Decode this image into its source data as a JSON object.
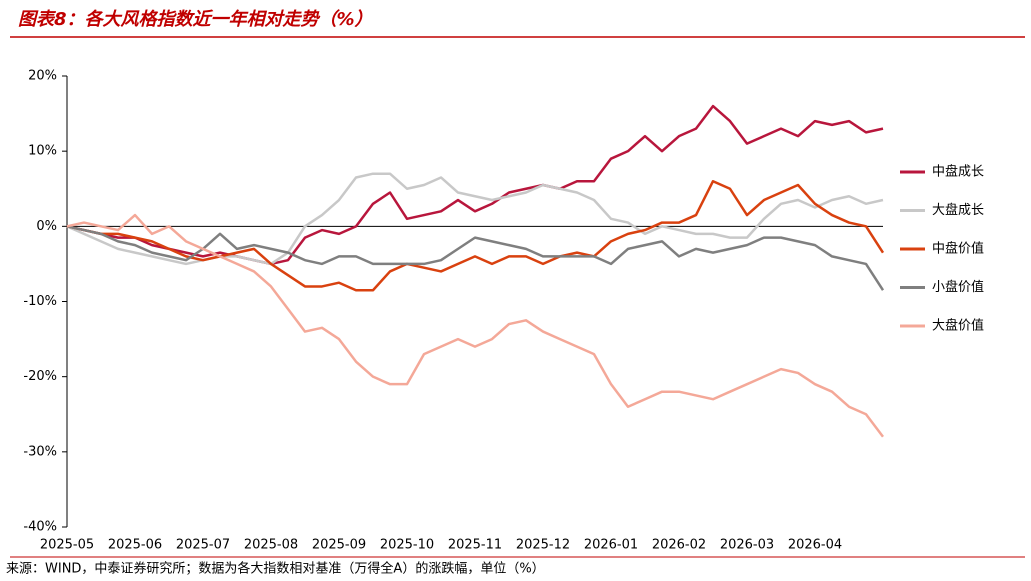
{
  "chart_data": {
    "type": "line",
    "title": "图表8：各大风格指数近一年相对走势（%）",
    "categories": [
      "2025-05",
      null,
      null,
      null,
      "2025-06",
      null,
      null,
      null,
      "2025-07",
      null,
      null,
      null,
      "2025-08",
      null,
      null,
      null,
      "2025-09",
      null,
      null,
      null,
      "2025-10",
      null,
      null,
      null,
      "2025-11",
      null,
      null,
      null,
      "2025-12",
      null,
      null,
      null,
      "2026-01",
      null,
      null,
      null,
      "2026-02",
      null,
      null,
      null,
      "2026-03",
      null,
      null,
      null,
      "2026-04",
      null,
      null,
      null,
      null
    ],
    "ylim": [
      -40,
      20
    ],
    "yticks": [
      {
        "value": -40,
        "label": "-40%"
      },
      {
        "value": -30,
        "label": "-30%"
      },
      {
        "value": -20,
        "label": "-20%"
      },
      {
        "value": -10,
        "label": "-10%"
      },
      {
        "value": 0,
        "label": "0%"
      },
      {
        "value": 10,
        "label": "10%"
      },
      {
        "value": 20,
        "label": "20%"
      }
    ],
    "legend": "right",
    "series": [
      {
        "name": "中盘成长",
        "color": "#b8163c",
        "values": [
          0,
          -0.5,
          -1,
          -1.5,
          -1.5,
          -2.5,
          -3,
          -3.5,
          -4,
          -3.5,
          -4,
          -4.5,
          -5,
          -4.5,
          -1.5,
          -0.5,
          -1,
          0,
          3,
          4.5,
          1,
          1.5,
          2,
          3.5,
          2,
          3,
          4.5,
          5,
          5.5,
          5,
          6,
          6,
          9,
          10,
          12,
          10,
          12,
          13,
          16,
          14,
          11,
          12,
          13,
          12,
          14,
          13.5,
          14,
          12.5,
          13
        ]
      },
      {
        "name": "大盘成长",
        "color": "#c8c8c8",
        "values": [
          0,
          -1,
          -2,
          -3,
          -3.5,
          -4,
          -4.5,
          -5,
          -4.5,
          -4,
          -4,
          -4.5,
          -5,
          -3.5,
          0,
          1.5,
          3.5,
          6.5,
          7,
          7,
          5,
          5.5,
          6.5,
          4.5,
          4,
          3.5,
          4,
          4.5,
          5.5,
          5,
          4.5,
          3.5,
          1,
          0.5,
          -1,
          0,
          -0.5,
          -1,
          -1,
          -1.5,
          -1.5,
          1,
          3,
          3.5,
          2.5,
          3.5,
          4,
          3,
          3.5
        ]
      },
      {
        "name": "中盘价值",
        "color": "#d9410f",
        "values": [
          0,
          -0.5,
          -1,
          -1,
          -1.5,
          -2,
          -3,
          -4,
          -4.5,
          -4,
          -3.5,
          -3,
          -5,
          -6.5,
          -8,
          -8,
          -7.5,
          -8.5,
          -8.5,
          -6,
          -5,
          -5.5,
          -6,
          -5,
          -4,
          -5,
          -4,
          -4,
          -5,
          -4,
          -3.5,
          -4,
          -2,
          -1,
          -0.5,
          0.5,
          0.5,
          1.5,
          6,
          5,
          1.5,
          3.5,
          4.5,
          5.5,
          3,
          1.5,
          0.5,
          0,
          -3.5
        ]
      },
      {
        "name": "小盘价值",
        "color": "#7f7f7f",
        "values": [
          0,
          -0.5,
          -1,
          -2,
          -2.5,
          -3.5,
          -4,
          -4.5,
          -3,
          -1,
          -3,
          -2.5,
          -3,
          -3.5,
          -4.5,
          -5,
          -4,
          -4,
          -5,
          -5,
          -5,
          -5,
          -4.5,
          -3,
          -1.5,
          -2,
          -2.5,
          -3,
          -4,
          -4,
          -4,
          -4,
          -5,
          -3,
          -2.5,
          -2,
          -4,
          -3,
          -3.5,
          -3,
          -2.5,
          -1.5,
          -1.5,
          -2,
          -2.5,
          -4,
          -4.5,
          -5,
          -8.5
        ]
      },
      {
        "name": "大盘价值",
        "color": "#f4a898",
        "values": [
          0,
          0.5,
          0,
          -0.5,
          1.5,
          -1,
          0,
          -2,
          -3,
          -4,
          -5,
          -6,
          -8,
          -11,
          -14,
          -13.5,
          -15,
          -18,
          -20,
          -21,
          -21,
          -17,
          -16,
          -15,
          -16,
          -15,
          -13,
          -12.5,
          -14,
          -15,
          -16,
          -17,
          -21,
          -24,
          -23,
          -22,
          -22,
          -22.5,
          -23,
          -22,
          -21,
          -20,
          -19,
          -19.5,
          -21,
          -22,
          -24,
          -25,
          -28
        ]
      }
    ]
  },
  "source": "来源：WIND，中泰证券研究所；数据为各大指数相对基准（万得全A）的涨跌幅，单位（%）"
}
